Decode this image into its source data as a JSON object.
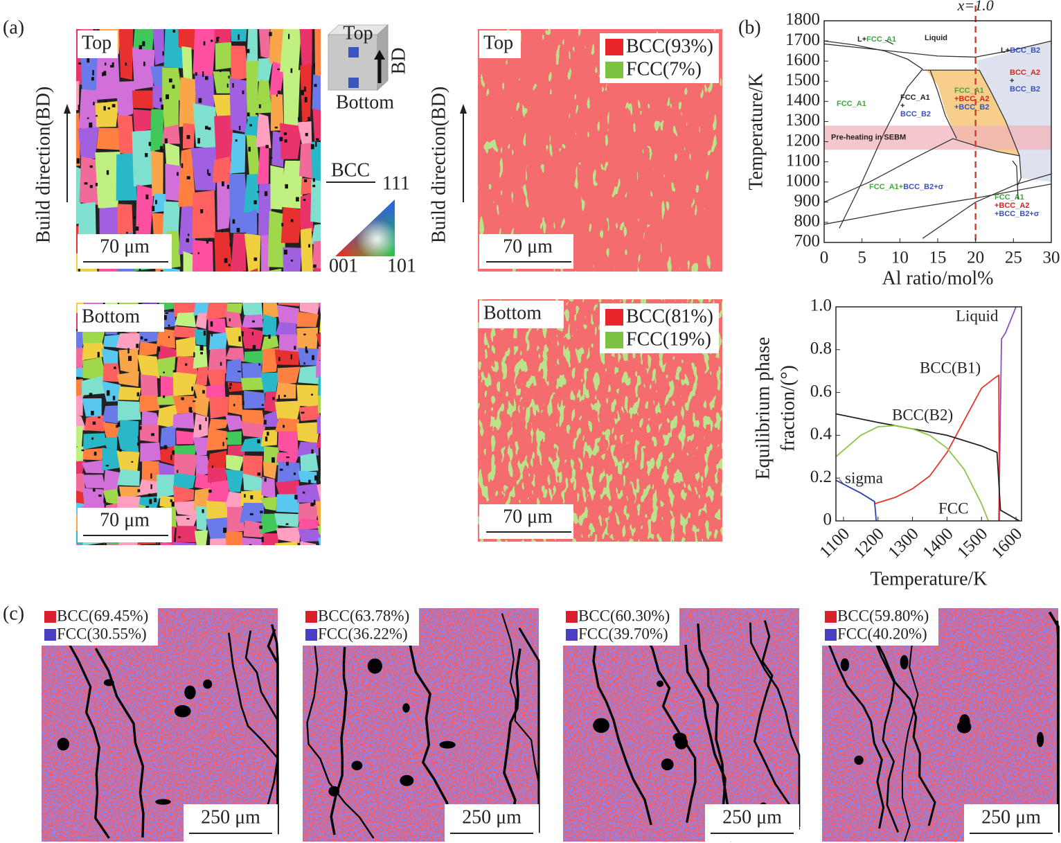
{
  "panel_labels": [
    "(a)",
    "(b)",
    "(c)"
  ],
  "ipf": {
    "axis_label": "Build direction(BD)",
    "maps": [
      {
        "label": "Top",
        "scale_bar": "70 μm"
      },
      {
        "label": "Bottom",
        "scale_bar": "70 μm"
      }
    ],
    "inset": {
      "top": "Top",
      "bottom": "Bottom",
      "direction": "BD",
      "phase": "BCC",
      "corners": [
        "111",
        "001",
        "101"
      ]
    }
  },
  "phase_maps": {
    "axis_label": "Build direction(BD)",
    "maps": [
      {
        "label": "Top",
        "scale_bar": "70 μm",
        "legend": [
          {
            "text": "BCC(93%)",
            "color": "#e8262a"
          },
          {
            "text": "FCC(7%)",
            "color": "#7cc242"
          }
        ]
      },
      {
        "label": "Bottom",
        "scale_bar": "70 μm",
        "legend": [
          {
            "text": "BCC(81%)",
            "color": "#e8262a"
          },
          {
            "text": "FCC(19%)",
            "color": "#7cc242"
          }
        ]
      }
    ]
  },
  "chart_data": [
    {
      "type": "line",
      "xlabel": "Al ratio/mol%",
      "ylabel": "Temperature/K",
      "xlim": [
        0,
        30
      ],
      "ylim": [
        700,
        1800
      ],
      "xticks": [
        0,
        5,
        10,
        15,
        20,
        25,
        30
      ],
      "yticks": [
        700,
        800,
        900,
        1000,
        1100,
        1200,
        1300,
        1400,
        1500,
        1600,
        1700,
        1800
      ],
      "regions": [
        {
          "color": "#f8cf8a",
          "x": [
            13.5,
            20.5,
            22,
            24,
            25.8,
            23,
            20,
            17.5,
            16,
            15
          ],
          "values": [
            1555,
            1555,
            1450,
            1300,
            1130,
            1150,
            1180,
            1215,
            1350,
            1480
          ]
        },
        {
          "color": "#dde2ee",
          "x": [
            20.5,
            20,
            25,
            30,
            30,
            26,
            25.8,
            24,
            22
          ],
          "values": [
            1555,
            1600,
            1650,
            1700,
            1000,
            1020,
            1130,
            1300,
            1450
          ]
        }
      ],
      "band": {
        "values": [
          1160,
          1280
        ],
        "label": "Pre-heating in SEBM",
        "color": "#f2b3ba"
      },
      "series": [
        {
          "color": "#333333",
          "x": [
            0,
            4,
            8,
            11,
            13
          ],
          "values": [
            1700,
            1680,
            1650,
            1610,
            1560
          ]
        },
        {
          "color": "#333333",
          "x": [
            0,
            5,
            10,
            15,
            20,
            25,
            30
          ],
          "values": [
            1685,
            1665,
            1645,
            1625,
            1620,
            1655,
            1700
          ]
        },
        {
          "color": "#333333",
          "x": [
            2,
            5,
            8,
            11,
            13
          ],
          "values": [
            770,
            1000,
            1250,
            1470,
            1560
          ]
        },
        {
          "color": "#333333",
          "x": [
            13,
            20.5
          ],
          "values": [
            1555,
            1555
          ]
        },
        {
          "color": "#333333",
          "x": [
            0,
            6,
            12,
            17,
            20,
            23,
            25.8
          ],
          "values": [
            900,
            1000,
            1120,
            1215,
            1180,
            1150,
            1130
          ]
        },
        {
          "color": "#333333",
          "x": [
            14,
            15,
            16,
            17.5
          ],
          "values": [
            1555,
            1450,
            1330,
            1215
          ]
        },
        {
          "color": "#333333",
          "x": [
            20.5,
            22,
            24,
            25.8,
            26,
            25.5
          ],
          "values": [
            1555,
            1450,
            1300,
            1130,
            1020,
            980
          ]
        },
        {
          "color": "#333333",
          "x": [
            0,
            10,
            20,
            30
          ],
          "values": [
            790,
            860,
            920,
            990
          ]
        },
        {
          "color": "#333333",
          "x": [
            13,
            20,
            25.5,
            30
          ],
          "values": [
            720,
            900,
            990,
            1040
          ]
        }
      ],
      "vline": {
        "value": 20,
        "label": "x=1.0",
        "color": "#e03a30"
      },
      "annotations": [
        [
          [
            {
              "text": "L+",
              "color": "#222222"
            },
            {
              "text": "FCC_A1",
              "color": "#3aa83a"
            }
          ]
        ],
        [
          [
            {
              "text": "Liquid",
              "color": "#222222"
            }
          ]
        ],
        [
          [
            {
              "text": "L+",
              "color": "#222222"
            },
            {
              "text": "BCC_B2",
              "color": "#3a50c0"
            }
          ]
        ],
        [
          [
            {
              "text": "BCC_A2",
              "color": "#e02020"
            }
          ],
          [
            {
              "text": "+",
              "color": "#222222"
            }
          ],
          [
            {
              "text": "BCC_B2",
              "color": "#3a50c0"
            }
          ]
        ],
        [
          [
            {
              "text": "FCC_A1",
              "color": "#3aa83a"
            }
          ]
        ],
        [
          [
            {
              "text": "FCC_A1",
              "color": "#222222"
            }
          ],
          [
            {
              "text": "+",
              "color": "#222222"
            }
          ],
          [
            {
              "text": "BCC_B2",
              "color": "#3a50c0"
            }
          ]
        ],
        [
          [
            {
              "text": "FCC_A1",
              "color": "#3aa83a"
            }
          ],
          [
            {
              "text": "+BCC_A2",
              "color": "#e02020"
            }
          ],
          [
            {
              "text": "+BCC_B2",
              "color": "#3a50c0"
            }
          ]
        ],
        [
          [
            {
              "text": "FCC_A1+",
              "color": "#3aa83a"
            },
            {
              "text": "BCC_B2+σ",
              "color": "#3a50c0"
            }
          ]
        ],
        [
          [
            {
              "text": "FCC_A1",
              "color": "#3aa83a"
            }
          ],
          [
            {
              "text": "+BCC_A2",
              "color": "#e02020"
            }
          ],
          [
            {
              "text": "+BCC_B2+σ",
              "color": "#3a50c0"
            }
          ]
        ]
      ]
    },
    {
      "type": "line",
      "xlabel": "Temperature/K",
      "ylabel": [
        "Equilibrium phase",
        "fraction/(°)"
      ],
      "xlim": [
        1078,
        1616
      ],
      "ylim": [
        0,
        1
      ],
      "xticks": [
        1100,
        1200,
        1300,
        1400,
        1500,
        1600
      ],
      "yticks": [
        0,
        0.2,
        0.4,
        0.6,
        0.8,
        {
          "value": 1,
          "label": "1.0"
        }
      ],
      "series": [
        {
          "name": "Liquid",
          "color": "#8a4fc0",
          "x": [
            1550,
            1558,
            1570,
            1600
          ],
          "values": [
            0,
            0.85,
            0.88,
            1
          ]
        },
        {
          "name": "BCC(B1)",
          "color": "#e8332a",
          "x": [
            1190,
            1250,
            1300,
            1350,
            1400,
            1450,
            1500,
            1540,
            1550,
            1552
          ],
          "values": [
            0.08,
            0.11,
            0.15,
            0.21,
            0.32,
            0.47,
            0.62,
            0.67,
            0.68,
            0
          ]
        },
        {
          "name": "BCC(B2)",
          "color": "#222222",
          "x": [
            1078,
            1200,
            1300,
            1400,
            1500,
            1545,
            1555,
            1610
          ],
          "values": [
            0.5,
            0.46,
            0.43,
            0.4,
            0.35,
            0.32,
            0.05,
            0
          ]
        },
        {
          "name": "sigma",
          "color": "#2a3fb0",
          "x": [
            1078,
            1150,
            1190,
            1195
          ],
          "values": [
            0.19,
            0.13,
            0.09,
            0
          ]
        },
        {
          "name": "FCC",
          "color": "#8cc63f",
          "x": [
            1078,
            1150,
            1200,
            1250,
            1300,
            1350,
            1400,
            1450,
            1500,
            1520
          ],
          "values": [
            0.3,
            0.4,
            0.44,
            0.445,
            0.43,
            0.4,
            0.34,
            0.24,
            0.08,
            0
          ]
        }
      ]
    }
  ],
  "maps_c": [
    {
      "legend": [
        {
          "text": "BCC(69.45%)",
          "color": "#d9202a"
        },
        {
          "text": "FCC(30.55%)",
          "color": "#4a3fc0"
        }
      ],
      "scale_bar": "250 μm"
    },
    {
      "legend": [
        {
          "text": "BCC(63.78%)",
          "color": "#d9202a"
        },
        {
          "text": "FCC(36.22%)",
          "color": "#4a3fc0"
        }
      ],
      "scale_bar": "250 μm"
    },
    {
      "legend": [
        {
          "text": "BCC(60.30%)",
          "color": "#d9202a"
        },
        {
          "text": "FCC(39.70%)",
          "color": "#4a3fc0"
        }
      ],
      "scale_bar": "250 μm"
    },
    {
      "legend": [
        {
          "text": "BCC(59.80%)",
          "color": "#d9202a"
        },
        {
          "text": "FCC(40.20%)",
          "color": "#4a3fc0"
        }
      ],
      "scale_bar": "250 μm"
    }
  ]
}
